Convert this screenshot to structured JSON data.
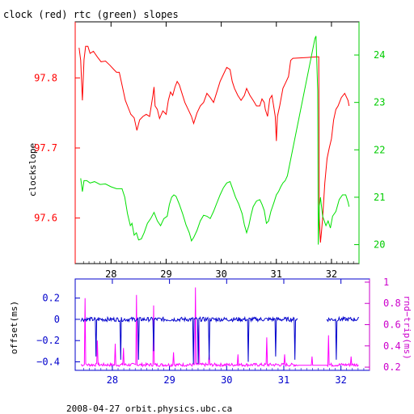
{
  "chart_data": [
    {
      "type": "line",
      "title": "clock (red) rtc (green) slopes",
      "ylabel": "clockslope",
      "x_ticks": [
        28,
        29,
        30,
        31,
        32
      ],
      "xlim": [
        27.35,
        32.5
      ],
      "y_left_ticks": [
        "97.8",
        "97.7",
        "97.6"
      ],
      "y_left_lim": [
        97.535,
        97.88
      ],
      "y_right_ticks": [
        "24",
        "23",
        "22",
        "21",
        "20"
      ],
      "y_right_lim": [
        19.6,
        24.7
      ],
      "series": [
        {
          "color": "#ff0000",
          "axis": "left",
          "points": [
            [
              27.42,
              97.843
            ],
            [
              27.45,
              97.825
            ],
            [
              27.48,
              97.768
            ],
            [
              27.51,
              97.826
            ],
            [
              27.54,
              97.845
            ],
            [
              27.58,
              97.845
            ],
            [
              27.62,
              97.835
            ],
            [
              27.68,
              97.838
            ],
            [
              27.75,
              97.83
            ],
            [
              27.82,
              97.823
            ],
            [
              27.9,
              97.824
            ],
            [
              27.98,
              97.818
            ],
            [
              28.05,
              97.812
            ],
            [
              28.1,
              97.808
            ],
            [
              28.15,
              97.808
            ],
            [
              28.2,
              97.79
            ],
            [
              28.26,
              97.768
            ],
            [
              28.3,
              97.76
            ],
            [
              28.36,
              97.748
            ],
            [
              28.42,
              97.743
            ],
            [
              28.47,
              97.725
            ],
            [
              28.52,
              97.74
            ],
            [
              28.58,
              97.745
            ],
            [
              28.64,
              97.748
            ],
            [
              28.7,
              97.745
            ],
            [
              28.76,
              97.775
            ],
            [
              28.78,
              97.787
            ],
            [
              28.8,
              97.76
            ],
            [
              28.84,
              97.755
            ],
            [
              28.88,
              97.742
            ],
            [
              28.94,
              97.753
            ],
            [
              29.0,
              97.748
            ],
            [
              29.04,
              97.768
            ],
            [
              29.08,
              97.78
            ],
            [
              29.12,
              97.775
            ],
            [
              29.16,
              97.787
            ],
            [
              29.2,
              97.795
            ],
            [
              29.24,
              97.79
            ],
            [
              29.28,
              97.78
            ],
            [
              29.34,
              97.765
            ],
            [
              29.4,
              97.755
            ],
            [
              29.46,
              97.745
            ],
            [
              29.5,
              97.735
            ],
            [
              29.56,
              97.75
            ],
            [
              29.62,
              97.76
            ],
            [
              29.68,
              97.765
            ],
            [
              29.74,
              97.778
            ],
            [
              29.8,
              97.772
            ],
            [
              29.86,
              97.765
            ],
            [
              29.92,
              97.78
            ],
            [
              29.98,
              97.795
            ],
            [
              30.04,
              97.805
            ],
            [
              30.1,
              97.815
            ],
            [
              30.16,
              97.812
            ],
            [
              30.2,
              97.795
            ],
            [
              30.24,
              97.785
            ],
            [
              30.3,
              97.775
            ],
            [
              30.36,
              97.768
            ],
            [
              30.42,
              97.775
            ],
            [
              30.46,
              97.785
            ],
            [
              30.52,
              97.775
            ],
            [
              30.58,
              97.768
            ],
            [
              30.64,
              97.76
            ],
            [
              30.7,
              97.76
            ],
            [
              30.74,
              97.77
            ],
            [
              30.78,
              97.765
            ],
            [
              30.8,
              97.755
            ],
            [
              30.84,
              97.745
            ],
            [
              30.88,
              97.77
            ],
            [
              30.92,
              97.775
            ],
            [
              30.95,
              97.76
            ],
            [
              30.98,
              97.745
            ],
            [
              31.0,
              97.71
            ],
            [
              31.02,
              97.745
            ],
            [
              31.06,
              97.76
            ],
            [
              31.12,
              97.785
            ],
            [
              31.18,
              97.795
            ],
            [
              31.22,
              97.802
            ],
            [
              31.26,
              97.825
            ],
            [
              31.3,
              97.828
            ],
            [
              31.75,
              97.83
            ],
            [
              31.77,
              97.83
            ],
            [
              31.78,
              97.6
            ],
            [
              31.8,
              97.565
            ],
            [
              31.82,
              97.582
            ],
            [
              31.84,
              97.6
            ],
            [
              31.88,
              97.65
            ],
            [
              31.92,
              97.685
            ],
            [
              31.96,
              97.7
            ],
            [
              32.0,
              97.713
            ],
            [
              32.04,
              97.74
            ],
            [
              32.08,
              97.755
            ],
            [
              32.12,
              97.76
            ],
            [
              32.18,
              97.772
            ],
            [
              32.24,
              97.778
            ],
            [
              32.3,
              97.768
            ],
            [
              32.32,
              97.76
            ]
          ]
        },
        {
          "color": "#00e000",
          "axis": "right",
          "points": [
            [
              27.45,
              21.4
            ],
            [
              27.48,
              21.12
            ],
            [
              27.51,
              21.35
            ],
            [
              27.56,
              21.35
            ],
            [
              27.62,
              21.3
            ],
            [
              27.7,
              21.33
            ],
            [
              27.8,
              21.27
            ],
            [
              27.9,
              21.28
            ],
            [
              28.0,
              21.22
            ],
            [
              28.1,
              21.18
            ],
            [
              28.2,
              21.18
            ],
            [
              28.25,
              21.0
            ],
            [
              28.3,
              20.65
            ],
            [
              28.35,
              20.4
            ],
            [
              28.38,
              20.45
            ],
            [
              28.42,
              20.2
            ],
            [
              28.46,
              20.25
            ],
            [
              28.5,
              20.1
            ],
            [
              28.55,
              20.12
            ],
            [
              28.6,
              20.25
            ],
            [
              28.66,
              20.45
            ],
            [
              28.72,
              20.55
            ],
            [
              28.78,
              20.68
            ],
            [
              28.84,
              20.5
            ],
            [
              28.9,
              20.4
            ],
            [
              28.96,
              20.55
            ],
            [
              29.02,
              20.6
            ],
            [
              29.06,
              20.85
            ],
            [
              29.1,
              21.0
            ],
            [
              29.14,
              21.05
            ],
            [
              29.18,
              21.02
            ],
            [
              29.24,
              20.85
            ],
            [
              29.3,
              20.65
            ],
            [
              29.36,
              20.42
            ],
            [
              29.42,
              20.25
            ],
            [
              29.46,
              20.08
            ],
            [
              29.5,
              20.15
            ],
            [
              29.56,
              20.3
            ],
            [
              29.62,
              20.5
            ],
            [
              29.68,
              20.62
            ],
            [
              29.74,
              20.6
            ],
            [
              29.8,
              20.55
            ],
            [
              29.86,
              20.7
            ],
            [
              29.92,
              20.88
            ],
            [
              29.98,
              21.05
            ],
            [
              30.04,
              21.2
            ],
            [
              30.1,
              21.3
            ],
            [
              30.16,
              21.33
            ],
            [
              30.2,
              21.2
            ],
            [
              30.26,
              21.0
            ],
            [
              30.32,
              20.85
            ],
            [
              30.38,
              20.65
            ],
            [
              30.42,
              20.42
            ],
            [
              30.46,
              20.25
            ],
            [
              30.5,
              20.4
            ],
            [
              30.54,
              20.62
            ],
            [
              30.58,
              20.8
            ],
            [
              30.64,
              20.92
            ],
            [
              30.7,
              20.95
            ],
            [
              30.74,
              20.85
            ],
            [
              30.78,
              20.72
            ],
            [
              30.82,
              20.45
            ],
            [
              30.86,
              20.5
            ],
            [
              30.9,
              20.7
            ],
            [
              30.96,
              20.9
            ],
            [
              31.0,
              21.05
            ],
            [
              31.04,
              21.12
            ],
            [
              31.08,
              21.22
            ],
            [
              31.12,
              21.3
            ],
            [
              31.16,
              21.35
            ],
            [
              31.2,
              21.45
            ],
            [
              31.7,
              24.35
            ],
            [
              31.72,
              24.4
            ],
            [
              31.75,
              23.25
            ],
            [
              31.76,
              20.0
            ],
            [
              31.78,
              20.8
            ],
            [
              31.8,
              21.0
            ],
            [
              31.84,
              20.6
            ],
            [
              31.9,
              20.4
            ],
            [
              31.94,
              20.5
            ],
            [
              31.98,
              20.35
            ],
            [
              32.02,
              20.6
            ],
            [
              32.08,
              20.7
            ],
            [
              32.14,
              20.95
            ],
            [
              32.2,
              21.05
            ],
            [
              32.26,
              21.05
            ],
            [
              32.3,
              20.9
            ],
            [
              32.32,
              20.8
            ]
          ]
        }
      ]
    },
    {
      "type": "line",
      "ylabel": "offset(ms)",
      "y2label": "rnd−trip(ms)",
      "x_ticks": [
        28,
        29,
        30,
        31,
        32
      ],
      "xlim": [
        27.35,
        32.5
      ],
      "y_left_ticks": [
        "0.2",
        "0",
        "−0.2",
        "−0.4"
      ],
      "y_left_lim": [
        -0.48,
        0.38
      ],
      "y_right_ticks": [
        "1",
        "0.8",
        "0.6",
        "0.4",
        "0.2"
      ],
      "y_right_lim": [
        0.17,
        1.03
      ],
      "series": [
        {
          "color": "#0000cc",
          "axis": "left",
          "baseline": 0.0,
          "start": 27.45,
          "end": 32.32,
          "gap": [
            31.25,
            31.75
          ],
          "dips": [
            [
              27.72,
              -0.35
            ],
            [
              28.15,
              -0.38
            ],
            [
              28.46,
              -0.38
            ],
            [
              28.72,
              -0.3
            ],
            [
              29.42,
              -0.42
            ],
            [
              29.5,
              -0.42
            ],
            [
              29.7,
              -0.38
            ],
            [
              30.38,
              -0.4
            ],
            [
              30.86,
              -0.35
            ],
            [
              31.2,
              -0.38
            ],
            [
              31.78,
              -0.4
            ],
            [
              31.92,
              -0.38
            ]
          ]
        },
        {
          "color": "#ff00ff",
          "axis": "right",
          "baseline": 0.222,
          "start": 27.45,
          "end": 32.32,
          "spikes": [
            [
              27.52,
              0.85
            ],
            [
              27.74,
              0.45
            ],
            [
              28.05,
              0.42
            ],
            [
              28.2,
              0.38
            ],
            [
              28.42,
              0.88
            ],
            [
              28.72,
              0.78
            ],
            [
              29.07,
              0.34
            ],
            [
              29.46,
              0.95
            ],
            [
              29.52,
              0.6
            ],
            [
              29.7,
              0.32
            ],
            [
              30.2,
              0.32
            ],
            [
              30.7,
              0.48
            ],
            [
              31.02,
              0.32
            ],
            [
              31.5,
              0.3
            ],
            [
              31.78,
              0.5
            ],
            [
              32.18,
              0.3
            ]
          ]
        }
      ]
    }
  ],
  "footer": "2008-04-27  orbit.physics.ubc.ca"
}
